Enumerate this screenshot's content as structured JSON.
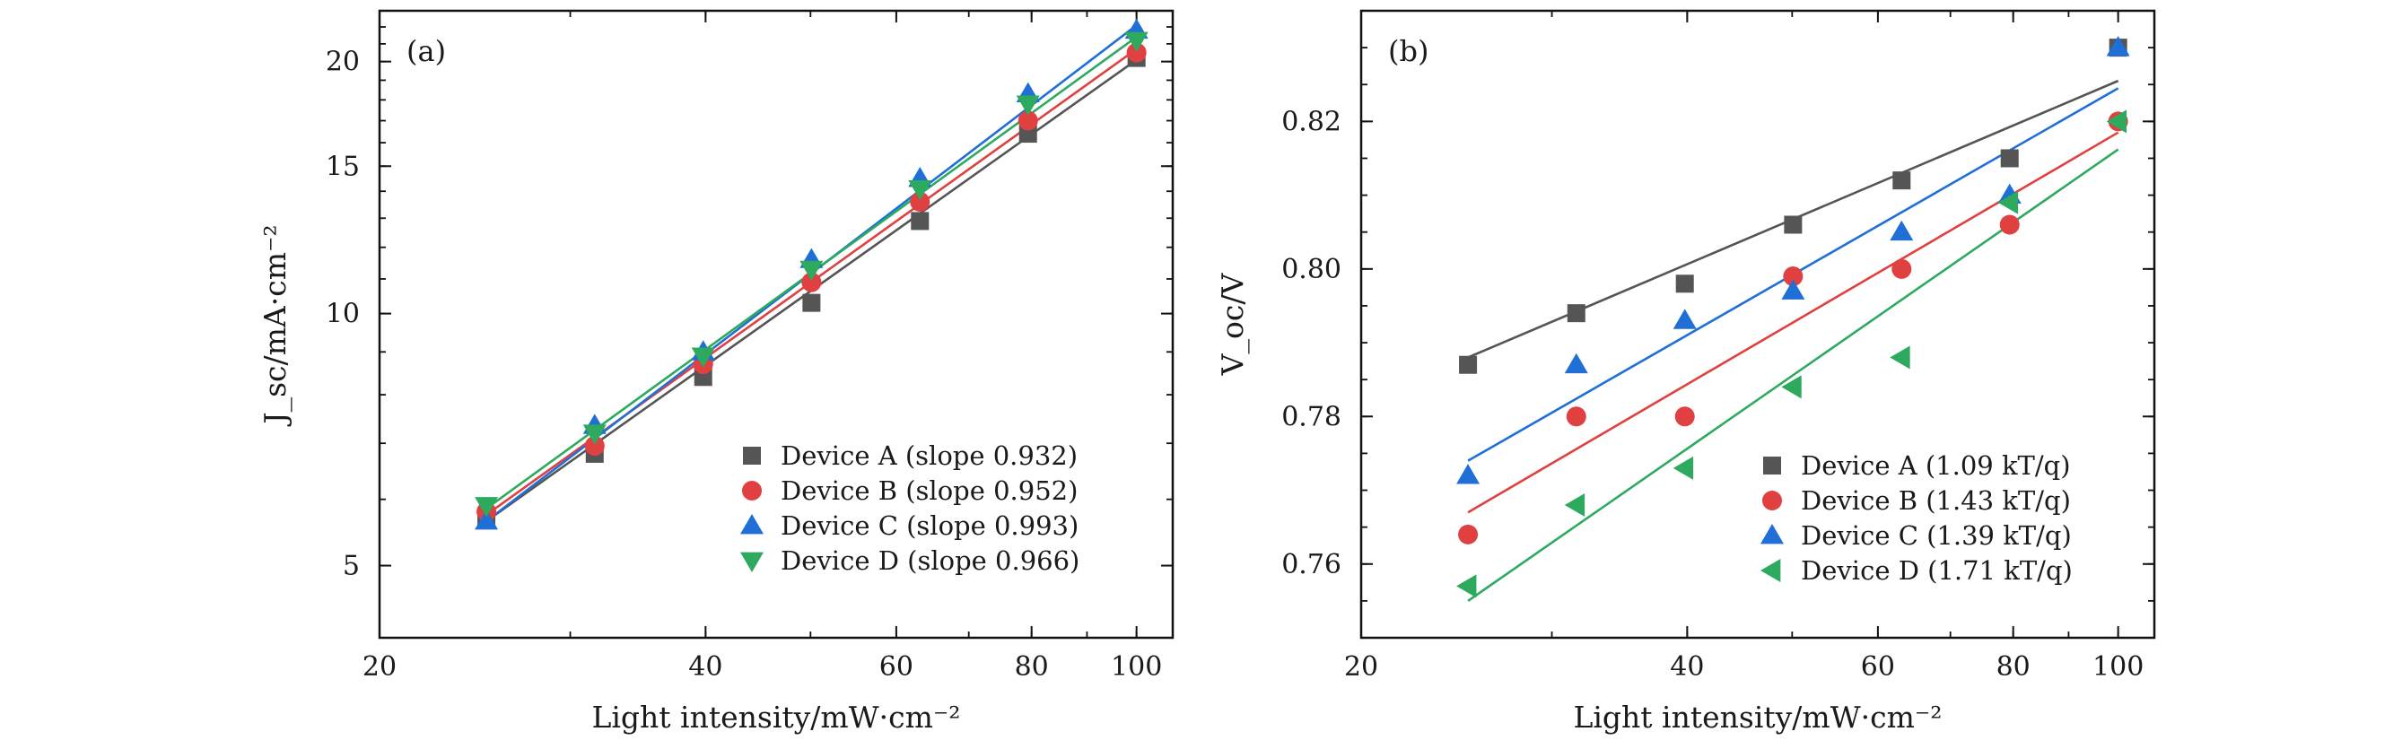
{
  "chart_data": [
    {
      "id": "a",
      "type": "scatter",
      "panel_label": "(a)",
      "xlabel": "Light intensity/mW·cm⁻²",
      "ylabel": "J_sc/mA·cm⁻²",
      "xscale": "log",
      "yscale": "log",
      "xlim": [
        20,
        108
      ],
      "ylim": [
        4.1,
        23
      ],
      "xticks": [
        20,
        40,
        60,
        80,
        100
      ],
      "xtick_labels": [
        "20",
        "40",
        "60",
        "80",
        "100"
      ],
      "yticks": [
        5,
        10,
        15,
        20
      ],
      "ytick_labels": [
        "5",
        "10",
        "15",
        "20"
      ],
      "grid": false,
      "legend_position": "bottom-right",
      "series": [
        {
          "name": "Device A (slope 0.932)",
          "marker": "square",
          "color": "#555555",
          "x": [
            25.1,
            31.6,
            39.8,
            50.1,
            63.1,
            79.4,
            100
          ],
          "y": [
            5.7,
            6.8,
            8.4,
            10.3,
            12.9,
            16.4,
            20.2
          ]
        },
        {
          "name": "Device B (slope 0.952)",
          "marker": "circle",
          "color": "#e04040",
          "x": [
            25.1,
            31.6,
            39.8,
            50.1,
            63.1,
            79.4,
            100
          ],
          "y": [
            5.8,
            6.95,
            8.7,
            10.9,
            13.6,
            17.0,
            20.5
          ]
        },
        {
          "name": "Device C (slope 0.993)",
          "marker": "triangle-up",
          "color": "#1f6fd6",
          "x": [
            25.1,
            31.6,
            39.8,
            50.1,
            63.1,
            79.4,
            100
          ],
          "y": [
            5.65,
            7.35,
            9.0,
            11.6,
            14.5,
            18.3,
            21.8
          ]
        },
        {
          "name": "Device D (slope 0.966)",
          "marker": "triangle-down",
          "color": "#2eaa5e",
          "x": [
            25.1,
            31.6,
            39.8,
            50.1,
            63.1,
            79.4,
            100
          ],
          "y": [
            5.9,
            7.2,
            8.9,
            11.3,
            14.1,
            17.8,
            21.2
          ]
        }
      ],
      "fits": [
        {
          "series": "Device A (slope 0.932)",
          "x": [
            25.1,
            100
          ],
          "y": [
            5.65,
            20.1
          ]
        },
        {
          "series": "Device B (slope 0.952)",
          "x": [
            25.1,
            100
          ],
          "y": [
            5.75,
            20.7
          ]
        },
        {
          "series": "Device C (slope 0.993)",
          "x": [
            25.1,
            100
          ],
          "y": [
            5.65,
            22.1
          ]
        },
        {
          "series": "Device D (slope 0.966)",
          "x": [
            25.1,
            100
          ],
          "y": [
            5.85,
            21.4
          ]
        }
      ]
    },
    {
      "id": "b",
      "type": "scatter",
      "panel_label": "(b)",
      "xlabel": "Light intensity/mW·cm⁻²",
      "ylabel": "V_oc/V",
      "xscale": "log",
      "yscale": "linear",
      "xlim": [
        20,
        108
      ],
      "ylim": [
        0.75,
        0.835
      ],
      "xticks": [
        20,
        40,
        60,
        80,
        100
      ],
      "xtick_labels": [
        "20",
        "40",
        "60",
        "80",
        "100"
      ],
      "yticks": [
        0.76,
        0.78,
        0.8,
        0.82
      ],
      "ytick_labels": [
        "0.76",
        "0.78",
        "0.80",
        "0.82"
      ],
      "grid": false,
      "legend_position": "bottom-right",
      "series": [
        {
          "name": "Device A (1.09 kT/q)",
          "marker": "square",
          "color": "#555555",
          "x": [
            25.1,
            31.6,
            39.8,
            50.1,
            63.1,
            79.4,
            100
          ],
          "y": [
            0.787,
            0.794,
            0.798,
            0.806,
            0.812,
            0.815,
            0.83
          ]
        },
        {
          "name": "Device B (1.43 kT/q)",
          "marker": "circle",
          "color": "#e04040",
          "x": [
            25.1,
            31.6,
            39.8,
            50.1,
            63.1,
            79.4,
            100
          ],
          "y": [
            0.764,
            0.78,
            0.78,
            0.799,
            0.8,
            0.806,
            0.82
          ]
        },
        {
          "name": "Device C (1.39 kT/q)",
          "marker": "triangle-up",
          "color": "#1f6fd6",
          "x": [
            25.1,
            31.6,
            39.8,
            50.1,
            63.1,
            79.4,
            100
          ],
          "y": [
            0.772,
            0.787,
            0.793,
            0.797,
            0.805,
            0.81,
            0.83
          ]
        },
        {
          "name": "Device D (1.71 kT/q)",
          "marker": "triangle-left",
          "color": "#2eaa5e",
          "x": [
            25.1,
            31.6,
            39.8,
            50.1,
            63.1,
            79.4,
            100
          ],
          "y": [
            0.757,
            0.768,
            0.773,
            0.784,
            0.788,
            0.809,
            0.82
          ]
        }
      ],
      "fits": [
        {
          "series": "Device A (1.09 kT/q)",
          "x": [
            25.1,
            100
          ],
          "y": [
            0.788,
            0.8255
          ]
        },
        {
          "series": "Device B (1.43 kT/q)",
          "x": [
            25.1,
            100
          ],
          "y": [
            0.767,
            0.8185
          ]
        },
        {
          "series": "Device C (1.39 kT/q)",
          "x": [
            25.1,
            100
          ],
          "y": [
            0.774,
            0.8245
          ]
        },
        {
          "series": "Device D (1.71 kT/q)",
          "x": [
            25.1,
            100
          ],
          "y": [
            0.755,
            0.8162
          ]
        }
      ]
    }
  ]
}
